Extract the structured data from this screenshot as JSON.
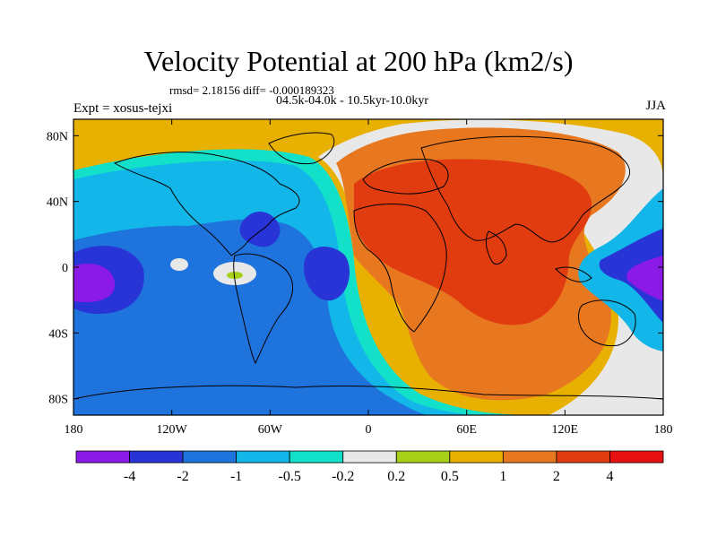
{
  "header": {
    "title": "Velocity Potential at 200 hPa (km2/s)",
    "stats": "rmsd= 2.18156 diff= -0.000189323",
    "experiment": "Expt = xosus-tejxi",
    "subtitle": "04.5k-04.0k - 10.5kyr-10.0kyr",
    "season": "JJA"
  },
  "chart_data": {
    "type": "heatmap",
    "title": "Velocity Potential at 200 hPa (km2/s)",
    "xlabel": "",
    "ylabel": "",
    "xlim": [
      -180,
      180
    ],
    "ylim": [
      -90,
      90
    ],
    "x_ticks": [
      {
        "value": -180,
        "label": "180"
      },
      {
        "value": -120,
        "label": "120W"
      },
      {
        "value": -60,
        "label": "60W"
      },
      {
        "value": 0,
        "label": "0"
      },
      {
        "value": 60,
        "label": "60E"
      },
      {
        "value": 120,
        "label": "120E"
      },
      {
        "value": 180,
        "label": "180"
      }
    ],
    "y_ticks": [
      {
        "value": 80,
        "label": "80N"
      },
      {
        "value": 40,
        "label": "40N"
      },
      {
        "value": 0,
        "label": "0"
      },
      {
        "value": -40,
        "label": "40S"
      },
      {
        "value": -80,
        "label": "80S"
      }
    ],
    "colorbar": {
      "levels": [
        -4,
        -2,
        -1,
        -0.5,
        -0.2,
        0.2,
        0.5,
        1,
        2,
        4
      ],
      "labels": [
        "-4",
        "-2",
        "-1",
        "-0.5",
        "-0.2",
        "0.2",
        "0.5",
        "1",
        "2",
        "4"
      ],
      "colors": [
        "#8c1ae6",
        "#2834d6",
        "#1f73dc",
        "#12b6e8",
        "#12e0c8",
        "#e8e8e8",
        "#a8d018",
        "#e8b000",
        "#e87820",
        "#e03c10",
        "#e81010"
      ]
    },
    "field_regions": [
      {
        "name": "background",
        "color": "#e8b000"
      },
      {
        "name": "western-negative-band",
        "color": "#12e0c8"
      },
      {
        "name": "western-blue",
        "color": "#12b6e8"
      },
      {
        "name": "western-mid-blue",
        "color": "#1f73dc"
      },
      {
        "name": "caribbean-low",
        "color": "#2834d6"
      },
      {
        "name": "atlantic-low",
        "color": "#2834d6"
      },
      {
        "name": "pacific-low-outer",
        "color": "#2834d6"
      },
      {
        "name": "pacific-low-core",
        "color": "#8c1ae6"
      },
      {
        "name": "eastern-zero-band",
        "color": "#e8e8e8"
      },
      {
        "name": "eastern-positive",
        "color": "#e87820"
      },
      {
        "name": "asian-high",
        "color": "#e03c10"
      },
      {
        "name": "west-pacific-low-band",
        "color": "#12b6e8"
      },
      {
        "name": "west-pacific-low-core",
        "color": "#2834d6"
      },
      {
        "name": "west-pacific-low-peak",
        "color": "#8c1ae6"
      }
    ]
  }
}
